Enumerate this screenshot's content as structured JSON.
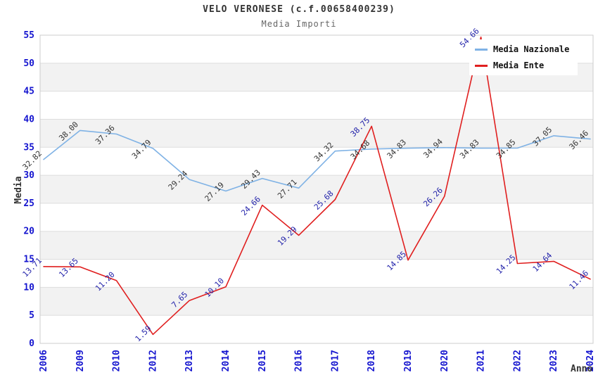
{
  "chart_data": {
    "type": "line",
    "title": "VELO VERONESE (c.f.00658400239)",
    "subtitle": "Media Importi",
    "xlabel": "Anno",
    "ylabel": "Media",
    "ylim": [
      0,
      55
    ],
    "yticks": [
      0,
      5,
      10,
      15,
      20,
      25,
      30,
      35,
      40,
      45,
      50,
      55
    ],
    "grid": true,
    "banded_background": true,
    "legend_position": "top-right",
    "categories": [
      "2006",
      "2009",
      "2010",
      "2012",
      "2013",
      "2014",
      "2015",
      "2016",
      "2017",
      "2018",
      "2019",
      "2020",
      "2021",
      "2022",
      "2023",
      "2024"
    ],
    "series": [
      {
        "name": "Media Nazionale",
        "color": "#7fb2e5",
        "label_color": "#333333",
        "values": [
          32.82,
          38.0,
          37.36,
          34.79,
          29.24,
          27.19,
          29.43,
          27.71,
          34.32,
          34.68,
          34.83,
          34.94,
          34.83,
          34.85,
          37.05,
          36.46
        ]
      },
      {
        "name": "Media Ente",
        "color": "#e01f1f",
        "label_color": "#2222aa",
        "values": [
          13.71,
          13.65,
          11.2,
          1.59,
          7.65,
          10.1,
          24.66,
          19.29,
          25.68,
          38.75,
          14.85,
          26.26,
          54.66,
          14.25,
          14.64,
          11.46
        ]
      }
    ]
  },
  "colors": {
    "title": "#333333",
    "subtitle": "#666666",
    "axis_tick": "#1515cf",
    "axis_title": "#333333",
    "grid_line": "#dddddd",
    "band": "#f2f2f2",
    "plot_border": "#cccccc",
    "background": "#ffffff"
  }
}
